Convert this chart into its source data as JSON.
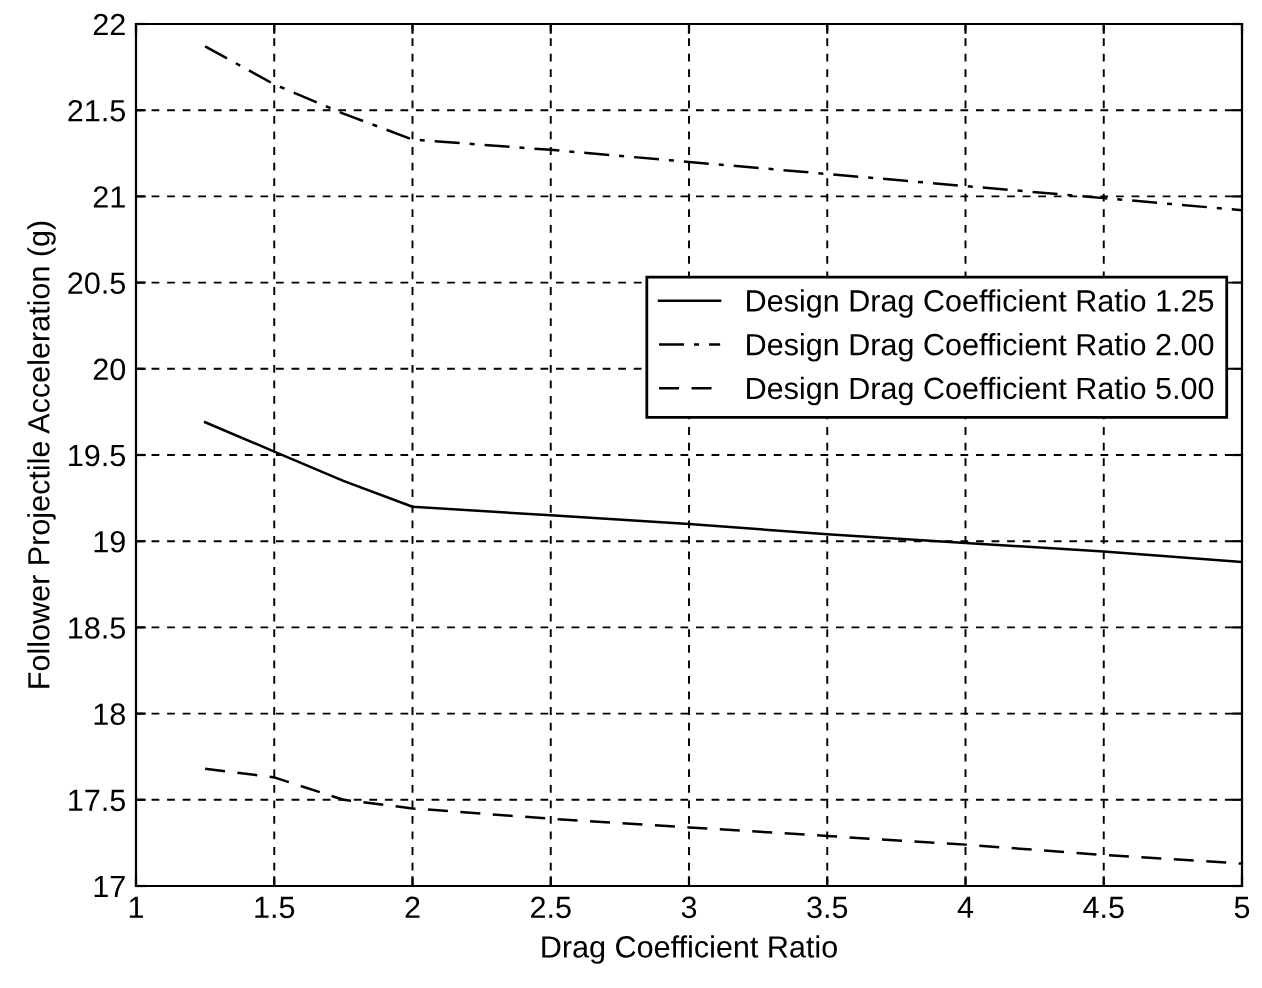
{
  "chart_data": {
    "type": "line",
    "xlabel": "Drag Coefficient Ratio",
    "ylabel": "Follower Projectile Acceleration (g)",
    "x": [
      1.25,
      1.5,
      1.75,
      2,
      2.5,
      3,
      3.5,
      4,
      4.5,
      5
    ],
    "series": [
      {
        "name": "Design Drag Coefficient Ratio 1.25",
        "color": "#000000",
        "line_style": "solid",
        "values": [
          19.69,
          19.52,
          19.35,
          19.2,
          19.15,
          19.1,
          19.04,
          18.99,
          18.94,
          18.88
        ]
      },
      {
        "name": "Design Drag Coefficient Ratio 2.00",
        "color": "#000000",
        "line_style": "dashdot",
        "values": [
          21.87,
          21.65,
          21.48,
          21.33,
          21.27,
          21.2,
          21.13,
          21.06,
          20.99,
          20.92
        ]
      },
      {
        "name": "Design Drag Coefficient Ratio 5.00",
        "color": "#000000",
        "line_style": "dashed",
        "values": [
          17.68,
          17.63,
          17.5,
          17.45,
          17.39,
          17.34,
          17.29,
          17.24,
          17.18,
          17.13
        ]
      }
    ],
    "xlim": [
      1,
      5
    ],
    "xticks": [
      1,
      1.5,
      2,
      2.5,
      3,
      3.5,
      4,
      4.5,
      5
    ],
    "ylim": [
      17,
      22
    ],
    "yticks": [
      17,
      17.5,
      18,
      18.5,
      19,
      19.5,
      20,
      20.5,
      21,
      21.5,
      22
    ],
    "grid": true,
    "legend": "center right",
    "marker": "none"
  }
}
